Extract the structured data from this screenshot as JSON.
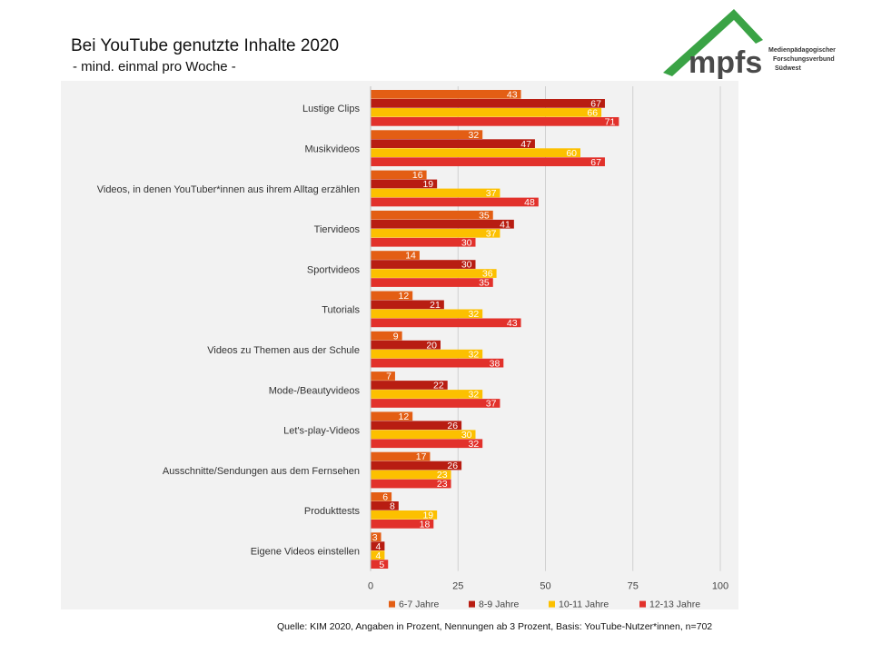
{
  "header": {
    "title": "Bei YouTube genutzte Inhalte 2020",
    "subtitle": "- mind. einmal pro Woche -"
  },
  "logo": {
    "wordmark": "mpfs",
    "org_line1": "Medienpädagogischer",
    "org_line2": "Forschungsverbund",
    "org_line3": "Südwest",
    "colors": {
      "roof": "#3aa345",
      "text": "#4a4a4a"
    }
  },
  "footer": {
    "source": "Quelle: KIM 2020, Angaben in Prozent, Nennungen ab 3 Prozent, Basis: YouTube-Nutzer*innen, n=702"
  },
  "chart_data": {
    "type": "bar",
    "orientation": "horizontal",
    "categories": [
      "Lustige Clips",
      "Musikvideos",
      "Videos, in denen YouTuber*innen aus ihrem Alltag erzählen",
      "Tiervideos",
      "Sportvideos",
      "Tutorials",
      "Videos zu Themen aus der Schule",
      "Mode-/Beautyvideos",
      "Let's-play-Videos",
      "Ausschnitte/Sendungen aus dem Fernsehen",
      "Produkttests",
      "Eigene Videos einstellen"
    ],
    "series": [
      {
        "name": "6-7 Jahre",
        "color": "#e35e14",
        "values": [
          43,
          32,
          16,
          35,
          14,
          12,
          9,
          7,
          12,
          17,
          6,
          3
        ]
      },
      {
        "name": "8-9 Jahre",
        "color": "#b81d12",
        "values": [
          67,
          47,
          19,
          41,
          30,
          21,
          20,
          22,
          26,
          26,
          8,
          4
        ]
      },
      {
        "name": "10-11 Jahre",
        "color": "#fcc000",
        "values": [
          66,
          60,
          37,
          37,
          36,
          32,
          32,
          32,
          30,
          23,
          19,
          4
        ]
      },
      {
        "name": "12-13 Jahre",
        "color": "#e2312b",
        "values": [
          71,
          67,
          48,
          30,
          35,
          43,
          38,
          37,
          32,
          23,
          18,
          5
        ]
      }
    ],
    "xlim": [
      0,
      100
    ],
    "xticks": [
      "0",
      "25",
      "50",
      "75",
      "100"
    ],
    "grid": true,
    "legend_position": "bottom"
  }
}
